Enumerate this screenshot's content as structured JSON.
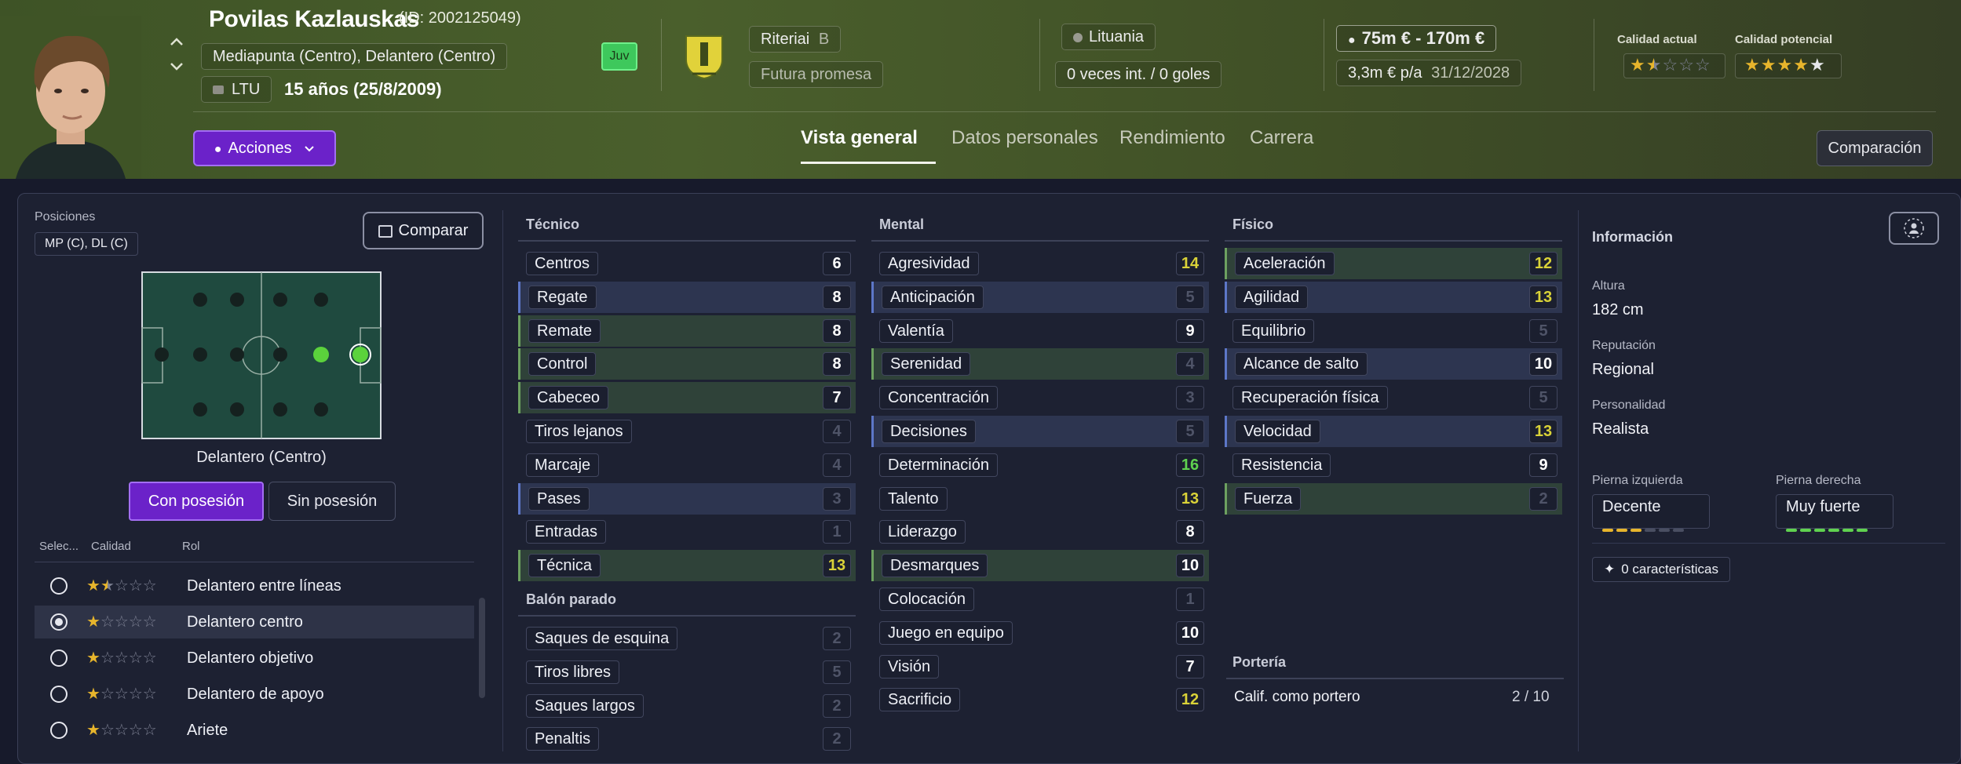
{
  "player": {
    "name": "Povilas Kazlauskas",
    "id": "(ID: 2002125049)",
    "positions": "Mediapunta (Centro), Delantero (Centro)",
    "nationality_code": "LTU",
    "age": "15 años (25/8/2009)",
    "badge": "Juv"
  },
  "club": {
    "name": "Riteriai",
    "tier": "B",
    "status": "Futura promesa"
  },
  "nation": {
    "name": "Lituania",
    "caps": "0 veces int. / 0 goles"
  },
  "value": {
    "range": "75m € - 170m €",
    "wage": "3,3m € p/a",
    "contract_end": "31/12/2028"
  },
  "quality": {
    "current_label": "Calidad actual",
    "current_stars": 1.5,
    "potential_label": "Calidad potencial",
    "potential_stars": 4.5
  },
  "actions": {
    "label": "Acciones"
  },
  "tabs": [
    "Vista general",
    "Datos personales",
    "Rendimiento",
    "Carrera"
  ],
  "compare_top": "Comparación",
  "left": {
    "positions_label": "Posiciones",
    "positions_value": "MP (C), DL (C)",
    "compare_btn": "Comparar",
    "pitch_caption": "Delantero (Centro)",
    "toggle_on": "Con posesión",
    "toggle_off": "Sin posesión",
    "col_select": "Selec...",
    "col_quality": "Calidad",
    "col_role": "Rol",
    "roles": [
      {
        "name": "Delantero entre líneas",
        "stars": 1.5,
        "selected": false
      },
      {
        "name": "Delantero centro",
        "stars": 1,
        "selected": true
      },
      {
        "name": "Delantero objetivo",
        "stars": 1,
        "selected": false
      },
      {
        "name": "Delantero de apoyo",
        "stars": 1,
        "selected": false
      },
      {
        "name": "Ariete",
        "stars": 1,
        "selected": false
      }
    ]
  },
  "attributes": {
    "tecnico": {
      "title": "Técnico",
      "items": [
        {
          "name": "Centros",
          "value": 6,
          "color": "white",
          "hl": ""
        },
        {
          "name": "Regate",
          "value": 8,
          "color": "white",
          "hl": "blue"
        },
        {
          "name": "Remate",
          "value": 8,
          "color": "white",
          "hl": "green"
        },
        {
          "name": "Control",
          "value": 8,
          "color": "white",
          "hl": "green"
        },
        {
          "name": "Cabeceo",
          "value": 7,
          "color": "white",
          "hl": "green"
        },
        {
          "name": "Tiros lejanos",
          "value": 4,
          "color": "dim",
          "hl": ""
        },
        {
          "name": "Marcaje",
          "value": 4,
          "color": "dim",
          "hl": ""
        },
        {
          "name": "Pases",
          "value": 3,
          "color": "dim",
          "hl": "blue"
        },
        {
          "name": "Entradas",
          "value": 1,
          "color": "dim",
          "hl": ""
        },
        {
          "name": "Técnica",
          "value": 13,
          "color": "yellow",
          "hl": "green"
        }
      ]
    },
    "balon_parado": {
      "title": "Balón parado",
      "items": [
        {
          "name": "Saques de esquina",
          "value": 2,
          "color": "dim",
          "hl": ""
        },
        {
          "name": "Tiros libres",
          "value": 5,
          "color": "dim",
          "hl": ""
        },
        {
          "name": "Saques largos",
          "value": 2,
          "color": "dim",
          "hl": ""
        },
        {
          "name": "Penaltis",
          "value": 2,
          "color": "dim",
          "hl": ""
        }
      ]
    },
    "mental": {
      "title": "Mental",
      "items": [
        {
          "name": "Agresividad",
          "value": 14,
          "color": "yellow",
          "hl": ""
        },
        {
          "name": "Anticipación",
          "value": 5,
          "color": "dim",
          "hl": "blue"
        },
        {
          "name": "Valentía",
          "value": 9,
          "color": "white",
          "hl": ""
        },
        {
          "name": "Serenidad",
          "value": 4,
          "color": "dim",
          "hl": "green"
        },
        {
          "name": "Concentración",
          "value": 3,
          "color": "dim",
          "hl": ""
        },
        {
          "name": "Decisiones",
          "value": 5,
          "color": "dim",
          "hl": "blue"
        },
        {
          "name": "Determinación",
          "value": 16,
          "color": "green",
          "hl": ""
        },
        {
          "name": "Talento",
          "value": 13,
          "color": "yellow",
          "hl": ""
        },
        {
          "name": "Liderazgo",
          "value": 8,
          "color": "white",
          "hl": ""
        },
        {
          "name": "Desmarques",
          "value": 10,
          "color": "white",
          "hl": "green"
        },
        {
          "name": "Colocación",
          "value": 1,
          "color": "dim",
          "hl": ""
        },
        {
          "name": "Juego en equipo",
          "value": 10,
          "color": "white",
          "hl": ""
        },
        {
          "name": "Visión",
          "value": 7,
          "color": "white",
          "hl": ""
        },
        {
          "name": "Sacrificio",
          "value": 12,
          "color": "yellow",
          "hl": ""
        }
      ]
    },
    "fisico": {
      "title": "Físico",
      "items": [
        {
          "name": "Aceleración",
          "value": 12,
          "color": "yellow",
          "hl": "green"
        },
        {
          "name": "Agilidad",
          "value": 13,
          "color": "yellow",
          "hl": "blue"
        },
        {
          "name": "Equilibrio",
          "value": 5,
          "color": "dim",
          "hl": ""
        },
        {
          "name": "Alcance de salto",
          "value": 10,
          "color": "white",
          "hl": "blue"
        },
        {
          "name": "Recuperación física",
          "value": 5,
          "color": "dim",
          "hl": ""
        },
        {
          "name": "Velocidad",
          "value": 13,
          "color": "yellow",
          "hl": "blue"
        },
        {
          "name": "Resistencia",
          "value": 9,
          "color": "white",
          "hl": ""
        },
        {
          "name": "Fuerza",
          "value": 2,
          "color": "dim",
          "hl": "green"
        }
      ]
    },
    "porteria": {
      "title": "Portería",
      "label": "Calif. como portero",
      "value": "2 / 10"
    }
  },
  "info": {
    "title": "Información",
    "height_label": "Altura",
    "height": "182 cm",
    "rep_label": "Reputación",
    "rep": "Regional",
    "pers_label": "Personalidad",
    "pers": "Realista",
    "left_foot_label": "Pierna izquierda",
    "left_foot": "Decente",
    "left_foot_level": 3,
    "right_foot_label": "Pierna derecha",
    "right_foot": "Muy fuerte",
    "right_foot_level": 6,
    "traits": "0 características"
  },
  "colors": {
    "accent": "#6b22c9",
    "yellow": "#d9d238",
    "green": "#5fd24f",
    "gold": "#e7b52c"
  }
}
